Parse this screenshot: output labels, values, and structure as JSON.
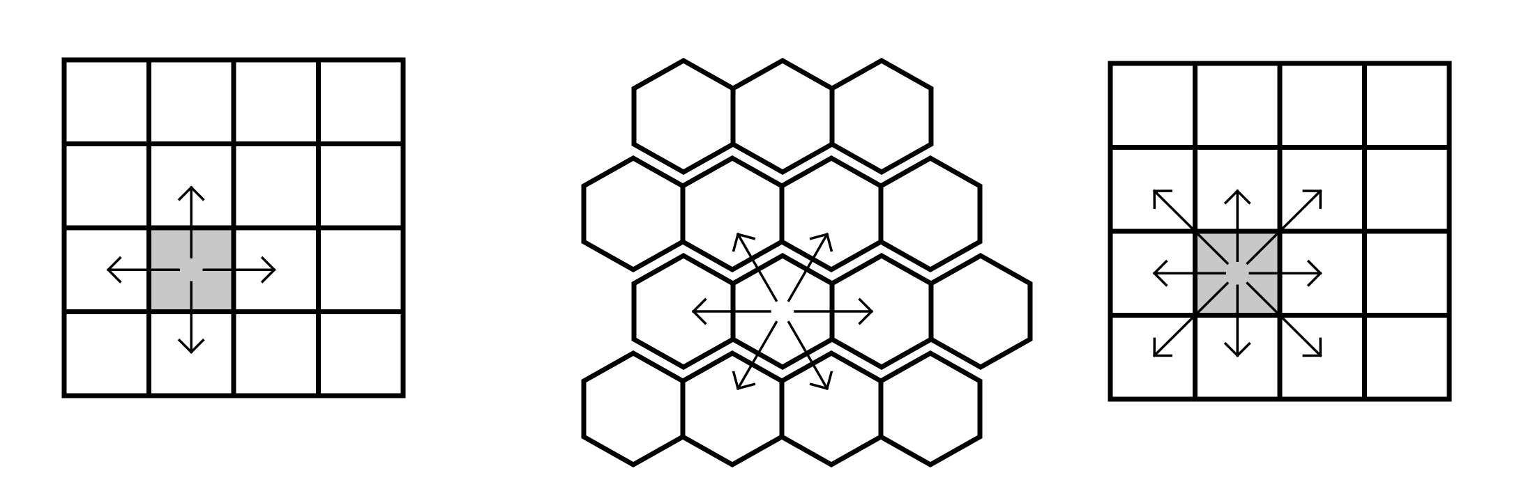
{
  "diagrams": [
    {
      "id": "square-4-neighborhood",
      "cell_shape": "square",
      "rows": 4,
      "cols": 4,
      "highlighted_cell": {
        "row": 2,
        "col": 1
      },
      "neighbor_count": 4,
      "directions": [
        "up",
        "down",
        "left",
        "right"
      ]
    },
    {
      "id": "hex-6-neighborhood",
      "cell_shape": "hexagon",
      "row_lengths": [
        3,
        4,
        4,
        4
      ],
      "highlighted_cell": {
        "row": 2,
        "col": 1
      },
      "neighbor_count": 6,
      "directions": [
        "left",
        "right",
        "upper-left",
        "upper-right",
        "lower-left",
        "lower-right"
      ]
    },
    {
      "id": "square-8-neighborhood",
      "cell_shape": "square",
      "rows": 4,
      "cols": 4,
      "highlighted_cell": {
        "row": 2,
        "col": 1
      },
      "neighbor_count": 8,
      "directions": [
        "up",
        "down",
        "left",
        "right",
        "up-left",
        "up-right",
        "down-left",
        "down-right"
      ]
    }
  ],
  "colors": {
    "line": "#000000",
    "highlight": "#c8c8c8",
    "background": "#ffffff"
  }
}
